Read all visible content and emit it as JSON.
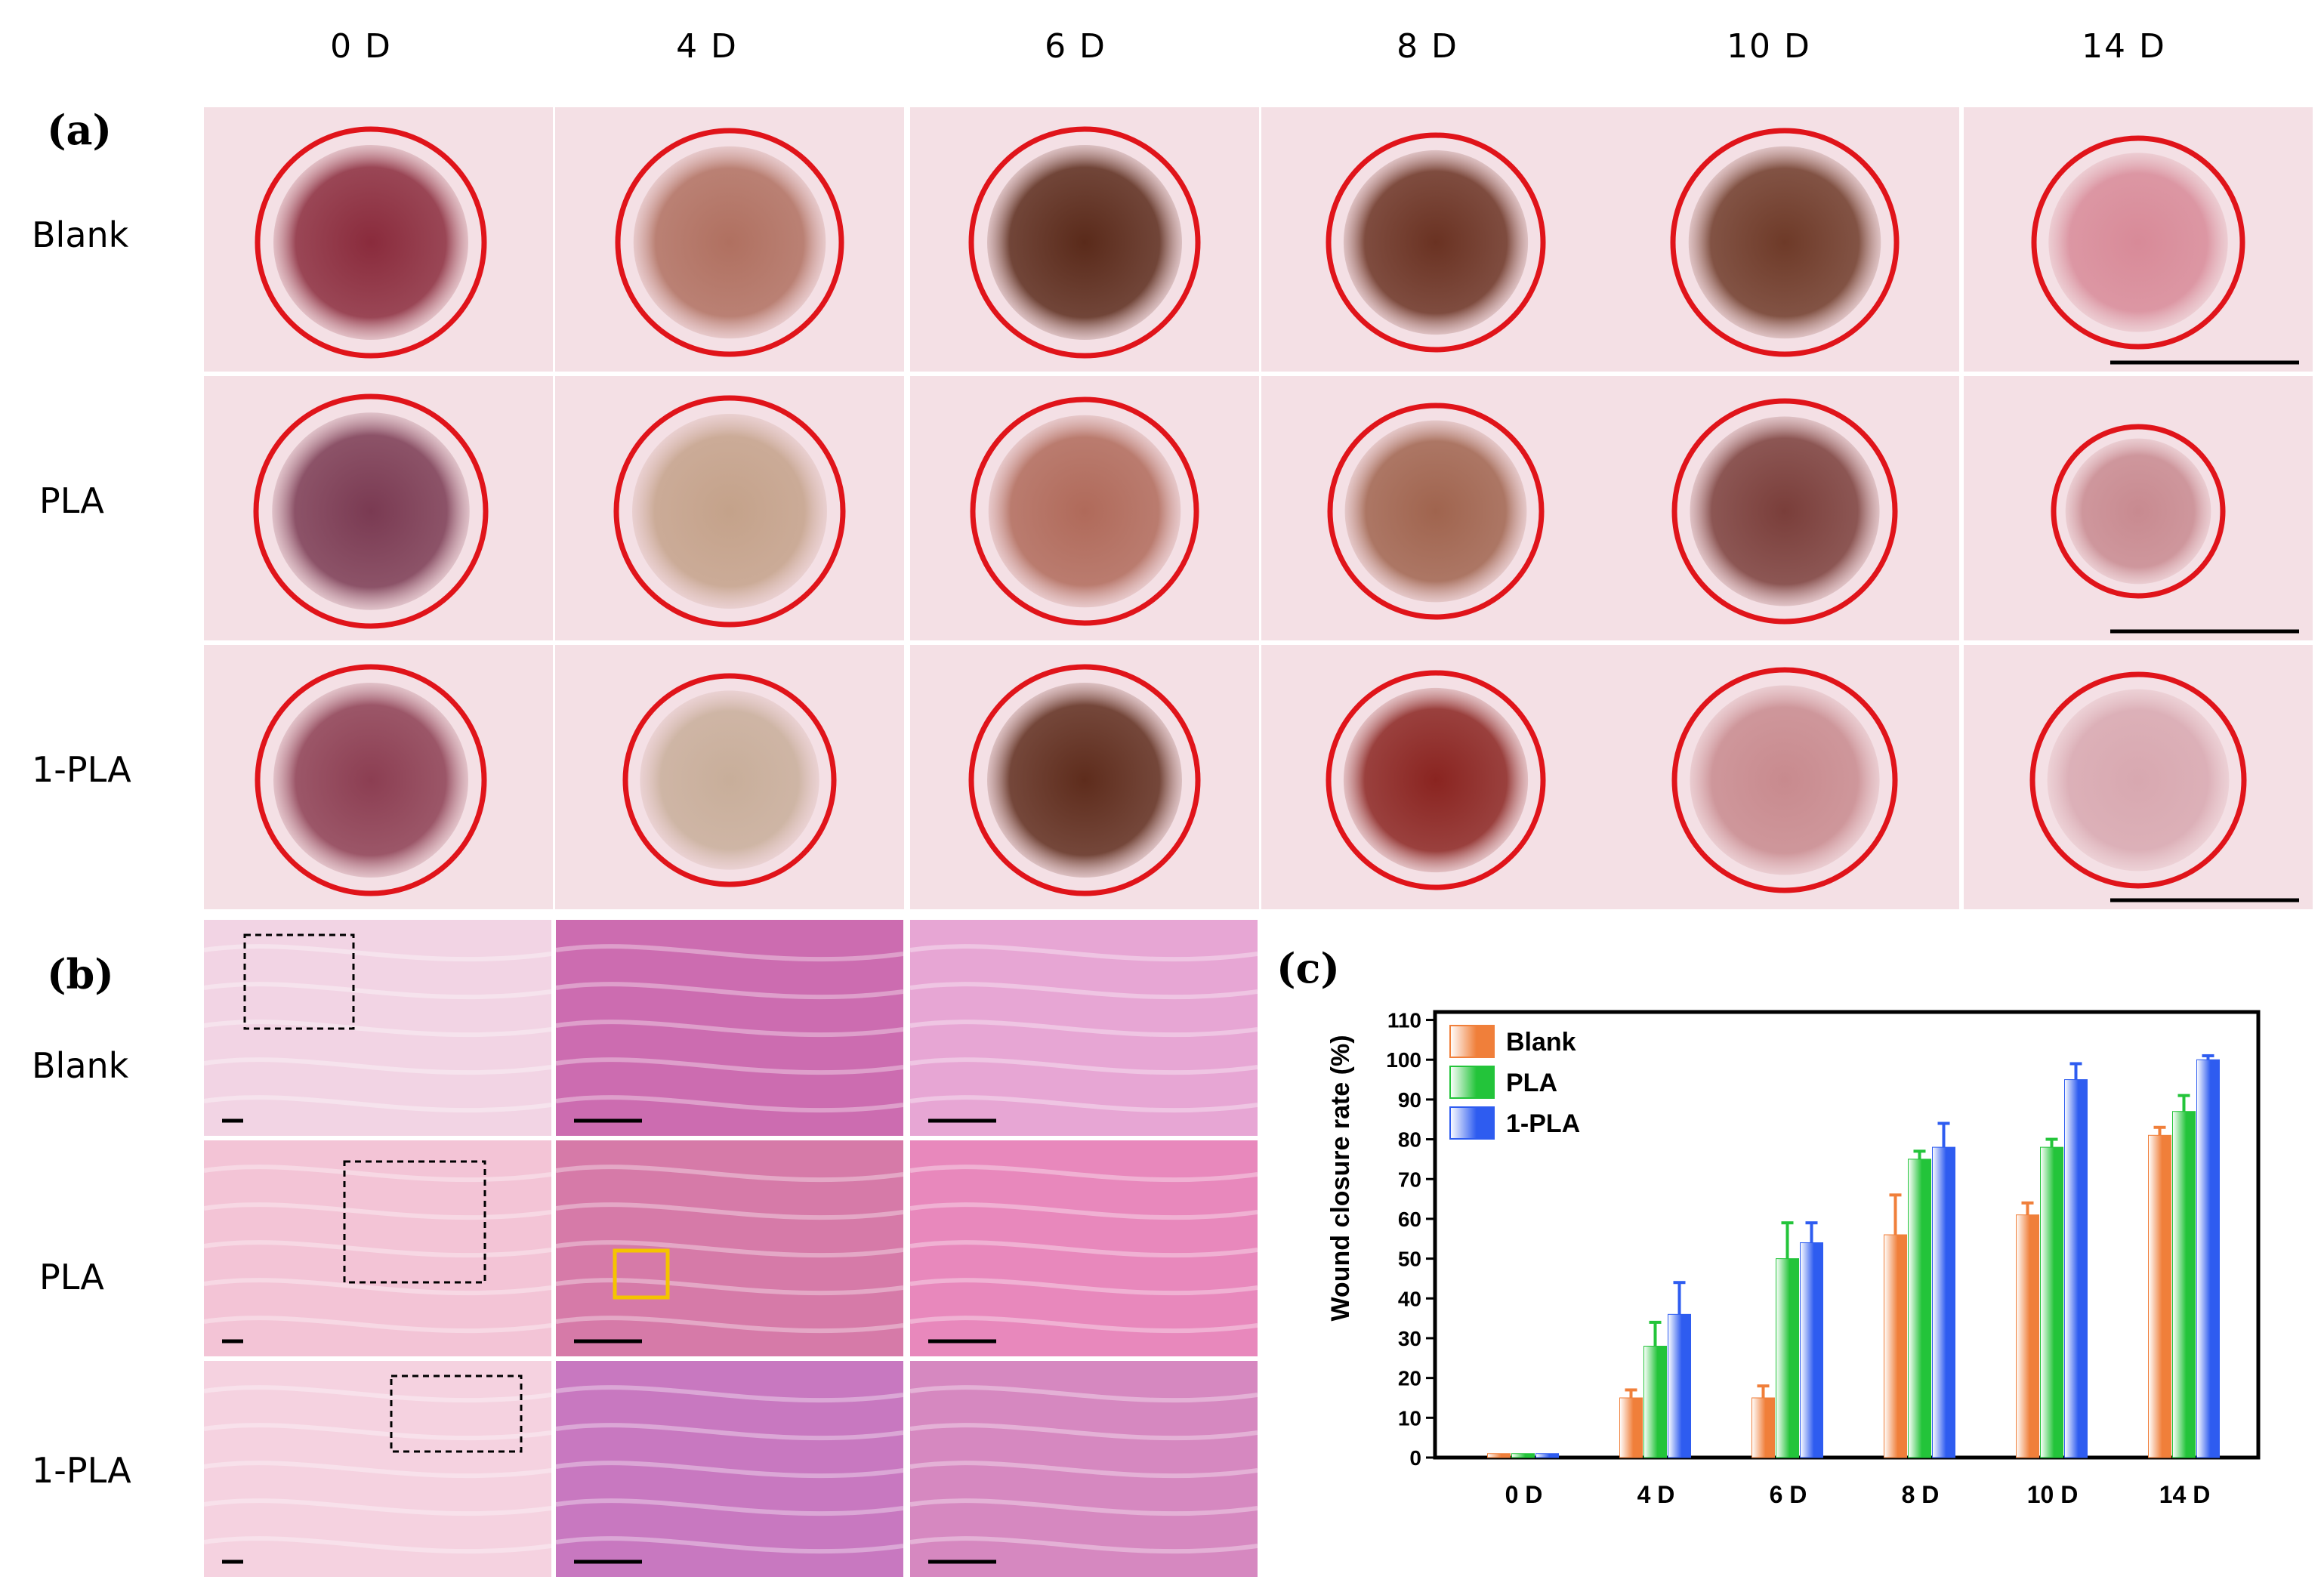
{
  "days": [
    "0 D",
    "4 D",
    "6 D",
    "8 D",
    "10 D",
    "14 D"
  ],
  "panel_a_label": "(a)",
  "panel_b_label": "(b)",
  "panel_c_label": "(c)",
  "groups": [
    "Blank",
    "PLA",
    "1-PLA"
  ],
  "colors": {
    "wound_circle": "#e0141a",
    "blank": "#f07f3a",
    "pla": "#23c43a",
    "one_pla": "#2e5cf0"
  },
  "chart_data": {
    "type": "bar",
    "ylabel": "Wound closure rate (%)",
    "categories": [
      "0 D",
      "4 D",
      "6 D",
      "8 D",
      "10 D",
      "14 D"
    ],
    "yticks": [
      0,
      10,
      20,
      30,
      40,
      50,
      60,
      70,
      80,
      90,
      100,
      110
    ],
    "ylim": [
      0,
      112
    ],
    "legend_position": "top-left",
    "series": [
      {
        "name": "Blank",
        "values": [
          1,
          15,
          15,
          56,
          61,
          81
        ],
        "errors": [
          0,
          2,
          3,
          10,
          3,
          2
        ]
      },
      {
        "name": "PLA",
        "values": [
          1,
          28,
          50,
          75,
          78,
          87
        ],
        "errors": [
          0,
          6,
          9,
          2,
          2,
          4
        ]
      },
      {
        "name": "1-PLA",
        "values": [
          1,
          36,
          54,
          78,
          95,
          100
        ],
        "errors": [
          0,
          8,
          5,
          6,
          4,
          1
        ]
      }
    ]
  }
}
